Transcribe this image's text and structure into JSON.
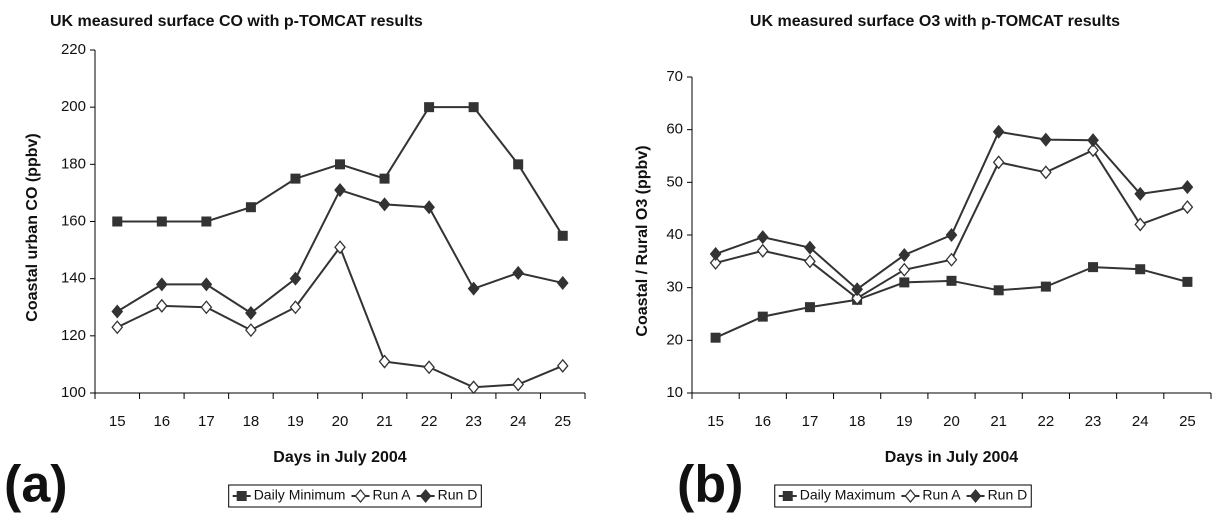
{
  "chart_data": [
    {
      "type": "line",
      "title": "UK measured surface CO with p-TOMCAT results",
      "label": "(a)",
      "xlabel": "Days in July 2004",
      "ylabel": "Coastal urban CO (ppbv)",
      "categories": [
        "15",
        "16",
        "17",
        "18",
        "19",
        "20",
        "21",
        "22",
        "23",
        "24",
        "25"
      ],
      "ylim": [
        100,
        220
      ],
      "yticks": [
        100,
        120,
        140,
        160,
        180,
        200,
        220
      ],
      "series": [
        {
          "name": "Daily Minimum",
          "color": "#333333",
          "marker": "square",
          "values": [
            160,
            160,
            160,
            165,
            175,
            180,
            175,
            200,
            200,
            180,
            155
          ]
        },
        {
          "name": "Run A",
          "color": "#333333",
          "marker": "open-diamond",
          "values": [
            123,
            130.5,
            130,
            122,
            130,
            151,
            111,
            109,
            102,
            103,
            109.5
          ]
        },
        {
          "name": "Run D",
          "color": "#333333",
          "marker": "diamond",
          "values": [
            128.5,
            138,
            138,
            128,
            140,
            171,
            166,
            165,
            136.5,
            142,
            138.5
          ]
        }
      ]
    },
    {
      "type": "line",
      "title": "UK measured surface O3 with p-TOMCAT results",
      "label": "(b)",
      "xlabel": "Days in July 2004",
      "ylabel": "Coastal / Rural O3 (ppbv)",
      "categories": [
        "15",
        "16",
        "17",
        "18",
        "19",
        "20",
        "21",
        "22",
        "23",
        "24",
        "25"
      ],
      "ylim": [
        10,
        70
      ],
      "yticks": [
        10,
        20,
        30,
        40,
        50,
        60,
        70
      ],
      "series": [
        {
          "name": "Daily Maximum",
          "color": "#333333",
          "marker": "square",
          "values": [
            20.5,
            24.5,
            26.3,
            27.7,
            31,
            31.3,
            29.5,
            30.2,
            33.9,
            33.5,
            31.1
          ]
        },
        {
          "name": "Run A",
          "color": "#333333",
          "marker": "open-diamond",
          "values": [
            34.7,
            37,
            35,
            28,
            33.4,
            35.3,
            53.8,
            51.9,
            56.1,
            42,
            45.3
          ]
        },
        {
          "name": "Run D",
          "color": "#333333",
          "marker": "diamond",
          "values": [
            36.4,
            39.6,
            37.6,
            29.7,
            36.2,
            40,
            59.6,
            58.1,
            58,
            47.8,
            49.1
          ]
        }
      ]
    }
  ]
}
